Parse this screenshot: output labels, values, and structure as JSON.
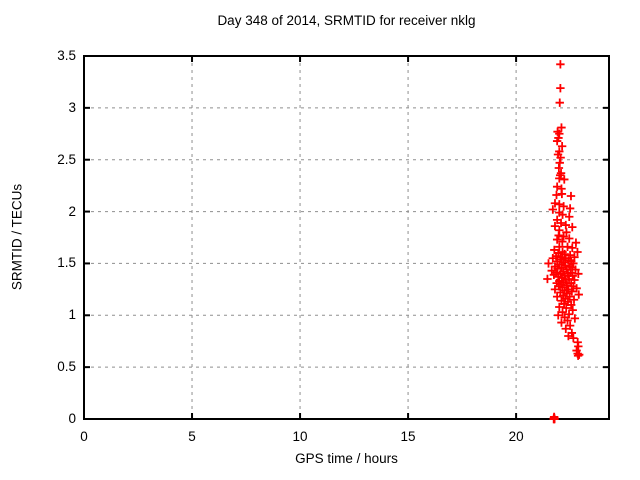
{
  "chart_data": {
    "type": "scatter",
    "title": "Day 348 of 2014, SRMTID for receiver nklg",
    "xlabel": "GPS time / hours",
    "ylabel": "SRMTID / TECUs",
    "xlim": [
      0,
      24.3
    ],
    "ylim": [
      0,
      3.5
    ],
    "xticks": [
      0,
      5,
      10,
      15,
      20
    ],
    "yticks": [
      0,
      0.5,
      1,
      1.5,
      2,
      2.5,
      3,
      3.5
    ],
    "grid": "dashed-both-axes",
    "legend_position": "none",
    "marker": "plus",
    "marker_color": "#ff0000",
    "grid_color": "#8f8f8f",
    "border_color": "#000000",
    "background_color": "#ffffff",
    "series": [
      {
        "name": "SRMTID",
        "points": [
          [
            22.05,
            3.42
          ],
          [
            22.05,
            3.19
          ],
          [
            22.02,
            3.05
          ],
          [
            22.1,
            2.81
          ],
          [
            21.92,
            2.77
          ],
          [
            22.0,
            2.75
          ],
          [
            21.96,
            2.71
          ],
          [
            21.9,
            2.68
          ],
          [
            22.13,
            2.63
          ],
          [
            22.0,
            2.58
          ],
          [
            21.94,
            2.55
          ],
          [
            22.06,
            2.52
          ],
          [
            22.02,
            2.47
          ],
          [
            21.98,
            2.42
          ],
          [
            22.08,
            2.37
          ],
          [
            22.04,
            2.35
          ],
          [
            22.0,
            2.32
          ],
          [
            22.23,
            2.31
          ],
          [
            21.9,
            2.24
          ],
          [
            22.1,
            2.22
          ],
          [
            22.12,
            2.17
          ],
          [
            21.87,
            2.16
          ],
          [
            22.54,
            2.15
          ],
          [
            21.8,
            2.08
          ],
          [
            22.0,
            2.07
          ],
          [
            22.2,
            2.05
          ],
          [
            22.5,
            2.03
          ],
          [
            21.7,
            2.02
          ],
          [
            22.0,
            1.99
          ],
          [
            22.15,
            1.97
          ],
          [
            22.46,
            1.95
          ],
          [
            21.9,
            1.92
          ],
          [
            22.08,
            1.89
          ],
          [
            22.3,
            1.87
          ],
          [
            21.8,
            1.86
          ],
          [
            22.6,
            1.85
          ],
          [
            22.0,
            1.82
          ],
          [
            22.33,
            1.8
          ],
          [
            21.97,
            1.77
          ],
          [
            22.2,
            1.76
          ],
          [
            22.46,
            1.74
          ],
          [
            21.9,
            1.73
          ],
          [
            22.14,
            1.71
          ],
          [
            22.77,
            1.7
          ],
          [
            22.0,
            1.66
          ],
          [
            22.38,
            1.66
          ],
          [
            22.6,
            1.65
          ],
          [
            21.77,
            1.63
          ],
          [
            22.15,
            1.61
          ],
          [
            22.84,
            1.61
          ],
          [
            21.95,
            1.6
          ],
          [
            22.25,
            1.59
          ],
          [
            22.5,
            1.58
          ],
          [
            21.85,
            1.57
          ],
          [
            22.05,
            1.56
          ],
          [
            22.7,
            1.56
          ],
          [
            21.7,
            1.55
          ],
          [
            22.3,
            1.55
          ],
          [
            22.12,
            1.54
          ],
          [
            22.42,
            1.53
          ],
          [
            21.9,
            1.52
          ],
          [
            22.55,
            1.52
          ],
          [
            22.2,
            1.51
          ],
          [
            21.5,
            1.5
          ],
          [
            22.65,
            1.5
          ],
          [
            22.0,
            1.49
          ],
          [
            22.28,
            1.48
          ],
          [
            21.8,
            1.47
          ],
          [
            22.48,
            1.47
          ],
          [
            22.1,
            1.46
          ],
          [
            22.6,
            1.46
          ],
          [
            21.92,
            1.45
          ],
          [
            22.35,
            1.44
          ],
          [
            22.75,
            1.44
          ],
          [
            21.65,
            1.43
          ],
          [
            22.18,
            1.42
          ],
          [
            21.85,
            1.41
          ],
          [
            22.52,
            1.41
          ],
          [
            22.05,
            1.4
          ],
          [
            22.4,
            1.4
          ],
          [
            22.88,
            1.4
          ],
          [
            21.75,
            1.39
          ],
          [
            22.25,
            1.38
          ],
          [
            22.62,
            1.38
          ],
          [
            21.95,
            1.37
          ],
          [
            22.12,
            1.36
          ],
          [
            21.45,
            1.35
          ],
          [
            22.45,
            1.35
          ],
          [
            22.3,
            1.34
          ],
          [
            22.7,
            1.34
          ],
          [
            22.0,
            1.33
          ],
          [
            22.2,
            1.32
          ],
          [
            21.88,
            1.31
          ],
          [
            22.55,
            1.31
          ],
          [
            22.08,
            1.3
          ],
          [
            22.35,
            1.29
          ],
          [
            21.98,
            1.28
          ],
          [
            22.65,
            1.28
          ],
          [
            22.15,
            1.27
          ],
          [
            22.8,
            1.26
          ],
          [
            21.8,
            1.25
          ],
          [
            22.42,
            1.25
          ],
          [
            22.25,
            1.24
          ],
          [
            22.58,
            1.23
          ],
          [
            22.05,
            1.22
          ],
          [
            22.35,
            1.21
          ],
          [
            22.9,
            1.2
          ],
          [
            22.18,
            1.19
          ],
          [
            21.9,
            1.18
          ],
          [
            22.48,
            1.18
          ],
          [
            22.28,
            1.16
          ],
          [
            22.68,
            1.15
          ],
          [
            22.1,
            1.14
          ],
          [
            22.4,
            1.13
          ],
          [
            22.22,
            1.11
          ],
          [
            22.55,
            1.1
          ],
          [
            22.0,
            1.08
          ],
          [
            22.32,
            1.07
          ],
          [
            22.62,
            1.05
          ],
          [
            22.15,
            1.03
          ],
          [
            22.45,
            1.01
          ],
          [
            21.95,
            1.0
          ],
          [
            22.25,
            0.98
          ],
          [
            22.72,
            0.97
          ],
          [
            22.38,
            0.95
          ],
          [
            22.1,
            0.93
          ],
          [
            22.5,
            0.9
          ],
          [
            22.3,
            0.87
          ],
          [
            22.58,
            0.83
          ],
          [
            22.42,
            0.8
          ],
          [
            22.65,
            0.78
          ],
          [
            22.85,
            0.74
          ],
          [
            22.88,
            0.7
          ],
          [
            22.8,
            0.66
          ],
          [
            22.85,
            0.63
          ],
          [
            22.92,
            0.62
          ],
          [
            22.87,
            0.61
          ],
          [
            21.74,
            0.0
          ],
          [
            21.76,
            0.0
          ],
          [
            21.78,
            0.0
          ],
          [
            21.75,
            0.01
          ],
          [
            21.77,
            0.01
          ],
          [
            21.76,
            0.02
          ]
        ]
      }
    ]
  }
}
